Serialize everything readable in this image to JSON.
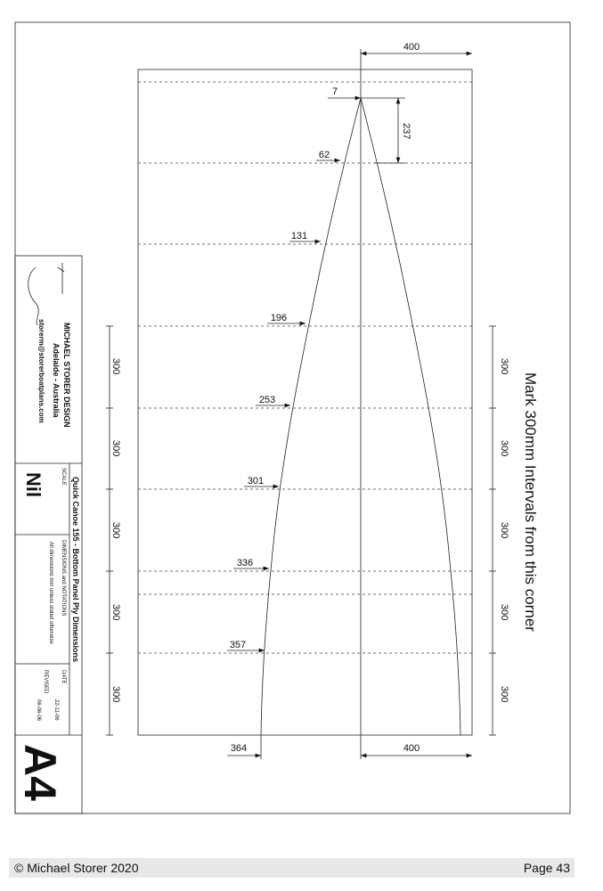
{
  "drawing": {
    "top_width": 400,
    "bottom_width": 400,
    "tip_offset": 7,
    "tip_length": 237,
    "half_widths": [
      62,
      131,
      196,
      253,
      301,
      336,
      357,
      364
    ],
    "left_intervals": [
      300,
      300,
      300,
      300,
      300
    ],
    "right_intervals": [
      300,
      300,
      300,
      300,
      300
    ],
    "note": "Mark 300mm Intervals from this corner"
  },
  "title_block": {
    "designer": "MICHAEL STORER DESIGN",
    "location": "Adelaide - Australia",
    "email": "storerm@storerboatplans.com",
    "title": "Quick Canoe 155 - Bottom Panel Ply Dimensions",
    "scale_label": "SCALE",
    "scale": "Nil",
    "notes_label": "DIMENSIONS and NOTATIONS",
    "notes": "All dimensions mm unless stated otherwise",
    "date_label": "DATE",
    "date": "22-11-06",
    "revised_label": "REVISED",
    "revised": "06-06-06",
    "size": "A4"
  },
  "footer": {
    "copyright": "© Michael Storer 2020",
    "page": "Page 43"
  }
}
